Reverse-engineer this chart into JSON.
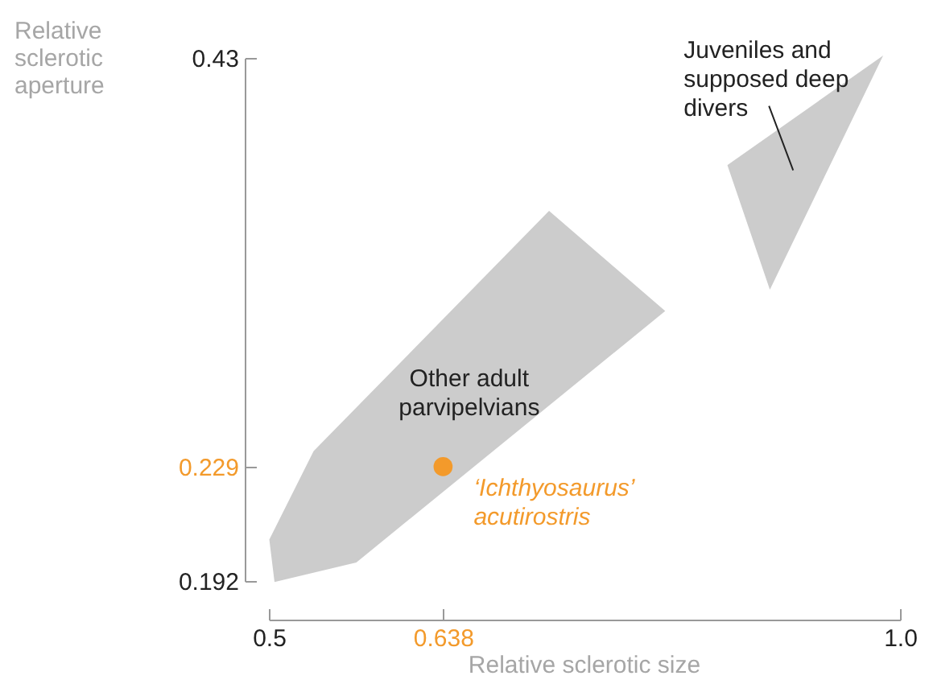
{
  "chart_data": {
    "type": "area",
    "xlabel": "Relative sclerotic size",
    "ylabel": "Relative sclerotic aperture",
    "xlim": [
      0.5,
      1.0
    ],
    "xticks": [
      0.5,
      0.638,
      {
        "value": 1.0,
        "label": "1.0"
      }
    ],
    "ylim": [
      0.192,
      0.43
    ],
    "yticks": [
      0.192,
      0.229,
      0.43
    ],
    "log": "y",
    "series": [
      {
        "name": "Other adult parvipelvians",
        "color": "#cccccc",
        "x": [
          0.505,
          0.501,
          0.536,
          0.722,
          0.813,
          0.569
        ],
        "values": [
          0.192,
          0.2046,
          0.2344,
          0.3391,
          0.2911,
          0.1978
        ]
      },
      {
        "name": "Juveniles and supposed deep divers",
        "color": "#cccccc",
        "x": [
          0.864,
          0.985,
          0.897
        ],
        "values": [
          0.3643,
          0.43,
          0.3018
        ]
      },
      {
        "type": "scatter",
        "name": "‘Ichthyosaurus’ acutirostris",
        "color": "#f39a2b",
        "x": [
          0.638
        ],
        "values": [
          0.229
        ]
      }
    ]
  }
}
